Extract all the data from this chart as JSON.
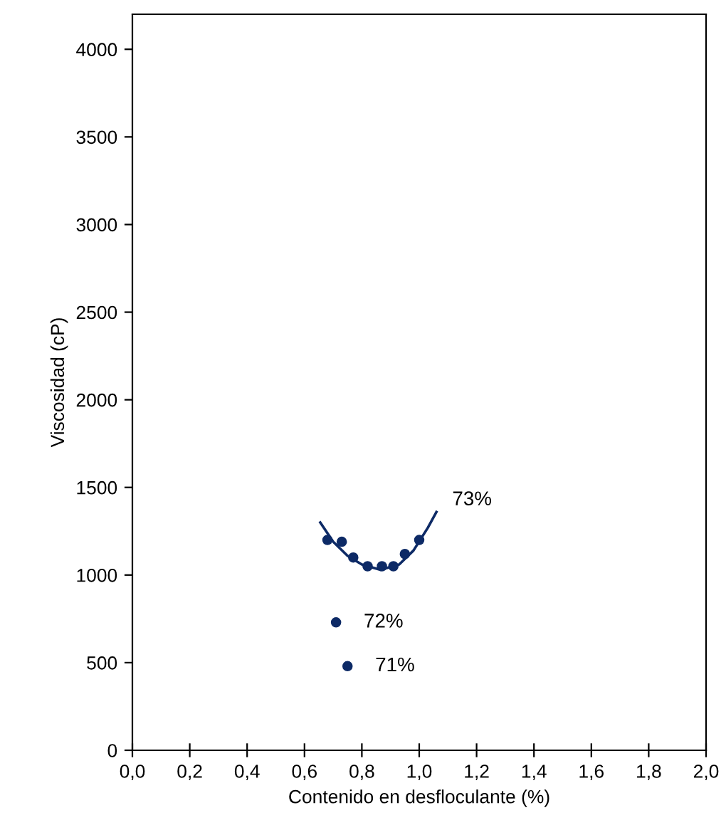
{
  "chart_data": {
    "type": "scatter",
    "xlabel": "Contenido en desfloculante (%)",
    "ylabel": "Viscosidad (cP)",
    "xlim": [
      0,
      2
    ],
    "ylim": [
      0,
      4200
    ],
    "xticks": [
      {
        "value": 0,
        "label": "0,0"
      },
      {
        "value": 0.2,
        "label": "0,2"
      },
      {
        "value": 0.4,
        "label": "0,4"
      },
      {
        "value": 0.6,
        "label": "0,6"
      },
      {
        "value": 0.8,
        "label": "0,8"
      },
      {
        "value": 1.0,
        "label": "1,0"
      },
      {
        "value": 1.2,
        "label": "1,2"
      },
      {
        "value": 1.4,
        "label": "1,4"
      },
      {
        "value": 1.6,
        "label": "1,6"
      },
      {
        "value": 1.8,
        "label": "1,8"
      },
      {
        "value": 2.0,
        "label": "2,0"
      }
    ],
    "yticks": [
      0,
      500,
      1000,
      1500,
      2000,
      2500,
      3000,
      3500,
      4000
    ],
    "grid": false,
    "legend": false,
    "marker": "circle",
    "series": [
      {
        "color": "#0d2a66",
        "x": [
          0.68,
          0.73,
          0.77,
          0.82,
          0.87,
          0.91,
          0.95,
          1.0
        ],
        "values": [
          1200,
          1190,
          1100,
          1050,
          1050,
          1050,
          1120,
          1200
        ]
      },
      {
        "name": "73%",
        "type": "line",
        "color": "#0d2a66",
        "marker": "none",
        "line_style": "solid",
        "x": [
          0.655,
          0.7,
          0.75,
          0.8,
          0.865,
          0.93,
          0.98,
          1.03,
          1.06
        ],
        "values": [
          1300,
          1190,
          1110,
          1060,
          1030,
          1060,
          1140,
          1270,
          1360
        ]
      },
      {
        "name": "72%",
        "color": "#0d2a66",
        "x": [
          0.71
        ],
        "values": [
          730
        ]
      },
      {
        "name": "71%",
        "color": "#0d2a66",
        "x": [
          0.75
        ],
        "values": [
          480
        ]
      }
    ]
  }
}
